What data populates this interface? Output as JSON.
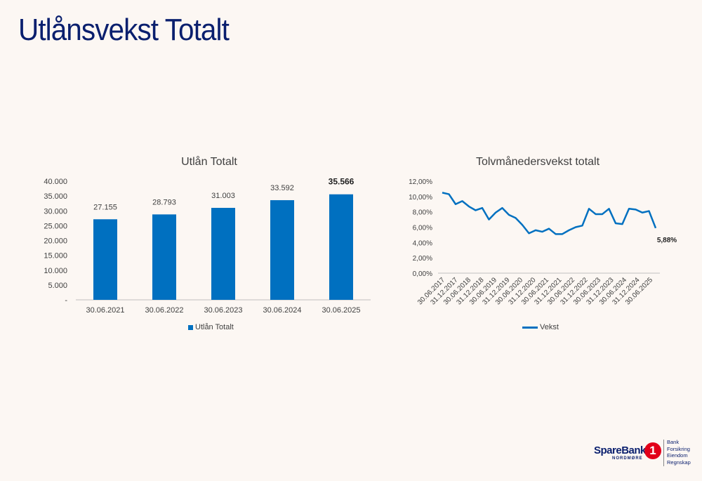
{
  "page": {
    "title": "Utlånsvekst Totalt"
  },
  "logo": {
    "brand": "SpareBank",
    "symbol": "1",
    "region": "NORDMØRE",
    "services": [
      "Bank",
      "Forsikring",
      "Eiendom",
      "Regnskap"
    ],
    "color": "#e2001a"
  },
  "chart_data": [
    {
      "type": "bar",
      "title": "Utlån Totalt",
      "categories": [
        "30.06.2021",
        "30.06.2022",
        "30.06.2023",
        "30.06.2024",
        "30.06.2025"
      ],
      "values": [
        27155,
        28793,
        31003,
        33592,
        35566
      ],
      "value_labels": [
        "27.155",
        "28.793",
        "31.003",
        "33.592",
        "35.566"
      ],
      "highlight_last_label": true,
      "ylim": [
        0,
        40000
      ],
      "yticks": [
        "-",
        "5.000",
        "10.000",
        "15.000",
        "20.000",
        "25.000",
        "30.000",
        "35.000",
        "40.000"
      ],
      "legend": "Utlån Totalt",
      "legend_position": "bottom",
      "grid": false,
      "color": "#0070c0"
    },
    {
      "type": "line",
      "title": "Tolvmånedersvekst totalt",
      "series_name": "Vekst",
      "x_tick_labels": [
        "30.06.2017",
        "31.12.2017",
        "30.06.2018",
        "31.12.2018",
        "30.06.2019",
        "31.12.2019",
        "30.06.2020",
        "31.12.2020",
        "30.06.2021",
        "31.12.2021",
        "30.06.2022",
        "31.12.2022",
        "30.06.2023",
        "31.12.2023",
        "30.06.2024",
        "31.12.2024",
        "30.06.2025"
      ],
      "values": [
        10.5,
        10.3,
        9.0,
        9.4,
        8.7,
        8.2,
        8.5,
        7.0,
        7.9,
        8.5,
        7.6,
        7.2,
        6.3,
        5.2,
        5.6,
        5.4,
        5.8,
        5.1,
        5.1,
        5.6,
        6.0,
        6.2,
        8.4,
        7.7,
        7.7,
        8.4,
        6.5,
        6.4,
        8.4,
        8.3,
        7.9,
        8.1,
        5.88
      ],
      "end_label": "5,88%",
      "ylim": [
        0,
        12
      ],
      "yticks": [
        "0,00%",
        "2,00%",
        "4,00%",
        "6,00%",
        "8,00%",
        "10,00%",
        "12,00%"
      ],
      "legend": "Vekst",
      "legend_position": "bottom",
      "grid": false,
      "color": "#0070c0"
    }
  ]
}
